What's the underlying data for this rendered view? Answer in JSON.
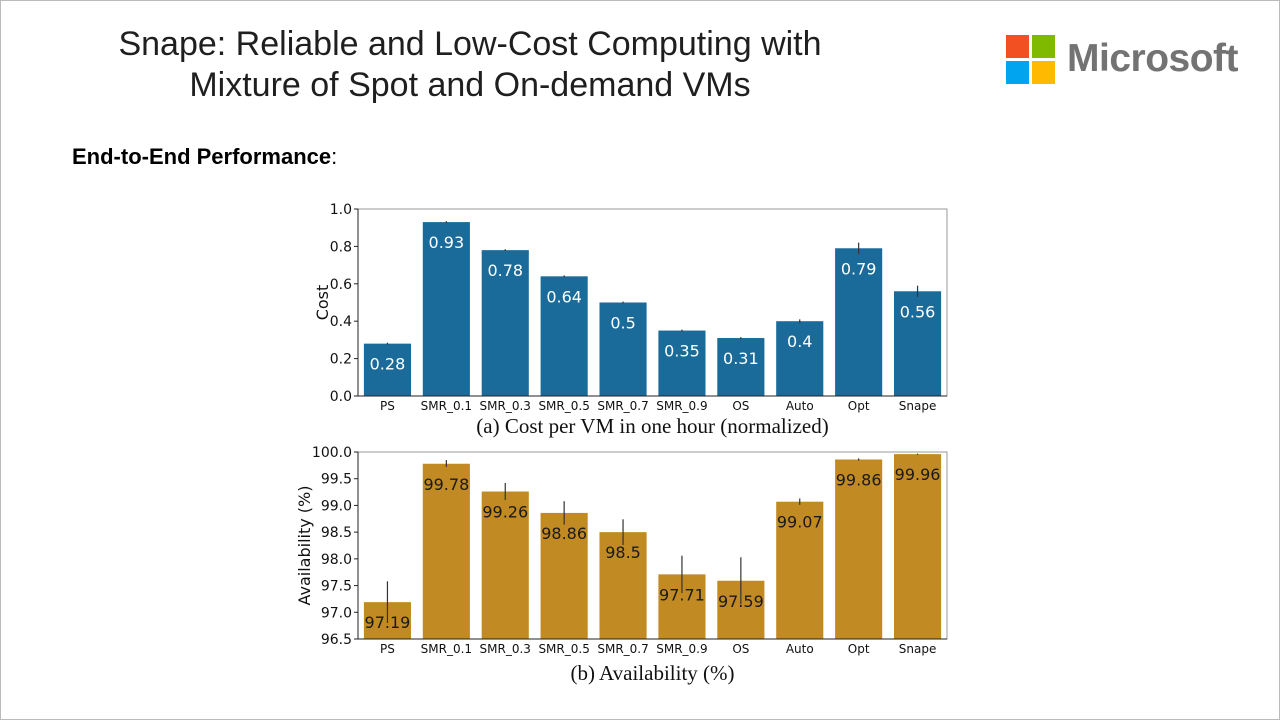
{
  "slide": {
    "title_line1": "Snape: Reliable and Low-Cost Computing with",
    "title_line2": "Mixture of Spot and On-demand VMs",
    "section_heading": "End-to-End Performance",
    "section_colon": ":",
    "logo_text": "Microsoft",
    "logo_colors": [
      "#f25022",
      "#7fba00",
      "#00a4ef",
      "#ffb900"
    ]
  },
  "chart_data": [
    {
      "type": "bar",
      "title": "(a) Cost per VM in one hour (normalized)",
      "xlabel": "",
      "ylabel": "Cost",
      "ylim": [
        0.0,
        1.0
      ],
      "yticks": [
        "0.0",
        "0.2",
        "0.4",
        "0.6",
        "0.8",
        "1.0"
      ],
      "categories": [
        "PS",
        "SMR_0.1",
        "SMR_0.3",
        "SMR_0.5",
        "SMR_0.7",
        "SMR_0.9",
        "OS",
        "Auto",
        "Opt",
        "Snape"
      ],
      "values": [
        0.28,
        0.93,
        0.78,
        0.64,
        0.5,
        0.35,
        0.31,
        0.4,
        0.79,
        0.56
      ],
      "labels": [
        "0.28",
        "0.93",
        "0.78",
        "0.64",
        "0.5",
        "0.35",
        "0.31",
        "0.4",
        "0.79",
        "0.56"
      ],
      "error_low": [
        0.275,
        0.925,
        0.775,
        0.635,
        0.495,
        0.345,
        0.305,
        0.39,
        0.76,
        0.53
      ],
      "error_high": [
        0.285,
        0.935,
        0.785,
        0.645,
        0.505,
        0.355,
        0.315,
        0.41,
        0.82,
        0.59
      ],
      "color": "#1a6b9a",
      "label_color": "#ffffff",
      "grid": false
    },
    {
      "type": "bar",
      "title": "(b) Availability (%)",
      "xlabel": "",
      "ylabel": "Availability (%)",
      "ylim": [
        96.5,
        100.0
      ],
      "yticks": [
        "96.5",
        "97.0",
        "97.5",
        "98.0",
        "98.5",
        "99.0",
        "99.5",
        "100.0"
      ],
      "categories": [
        "PS",
        "SMR_0.1",
        "SMR_0.3",
        "SMR_0.5",
        "SMR_0.7",
        "SMR_0.9",
        "OS",
        "Auto",
        "Opt",
        "Snape"
      ],
      "values": [
        97.19,
        99.78,
        99.26,
        98.86,
        98.5,
        97.71,
        97.59,
        99.07,
        99.86,
        99.96
      ],
      "labels": [
        "97.19",
        "99.78",
        "99.26",
        "98.86",
        "98.5",
        "97.71",
        "97.59",
        "99.07",
        "99.86",
        "99.96"
      ],
      "error_low": [
        96.8,
        99.72,
        99.1,
        98.64,
        98.26,
        97.36,
        97.15,
        99.01,
        99.84,
        99.95
      ],
      "error_high": [
        97.58,
        99.85,
        99.42,
        99.08,
        98.74,
        98.06,
        98.03,
        99.13,
        99.88,
        99.97
      ],
      "color": "#c28a22",
      "label_color": "#1a1a1a",
      "grid": false
    }
  ]
}
